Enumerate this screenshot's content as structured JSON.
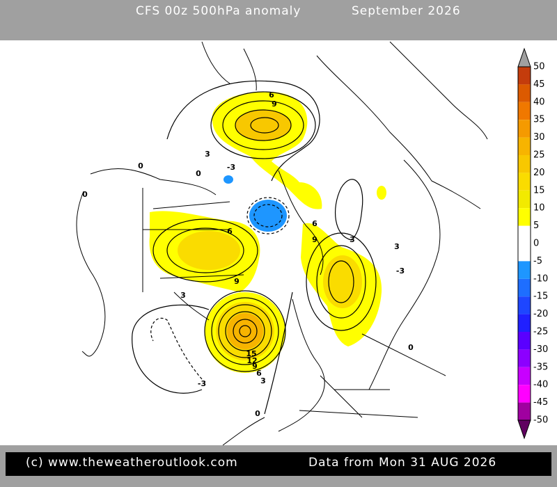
{
  "header": {
    "title": "CFS 00z 500hPa anomaly",
    "period": "September 2026"
  },
  "colorbar": {
    "levels": [
      50,
      45,
      40,
      35,
      30,
      25,
      20,
      15,
      10,
      5,
      0,
      -5,
      -10,
      -15,
      -20,
      -25,
      -30,
      -35,
      -40,
      -45,
      -50
    ],
    "colors": [
      "#c43c0c",
      "#dc5a00",
      "#f07800",
      "#f59a00",
      "#f7b400",
      "#f8c800",
      "#fadc00",
      "#f2ea00",
      "#ffff00",
      "#ffffff",
      "#ffffff",
      "#1e96ff",
      "#1e6eff",
      "#1e46ff",
      "#2020ff",
      "#5a00ff",
      "#8c00ff",
      "#c800ff",
      "#ff00ff",
      "#a000a0"
    ],
    "over_color": "#a0a0a0",
    "under_color": "#600060"
  },
  "contour_labels": [
    6,
    9,
    3,
    0,
    -3,
    0,
    6,
    9,
    6,
    9,
    3,
    3,
    0,
    15,
    12,
    9,
    6,
    3,
    -3,
    0,
    3,
    0,
    -3
  ],
  "footer": {
    "copyright": "(c) www.theweatheroutlook.com",
    "data_date": "Data from Mon 31 AUG 2026"
  }
}
